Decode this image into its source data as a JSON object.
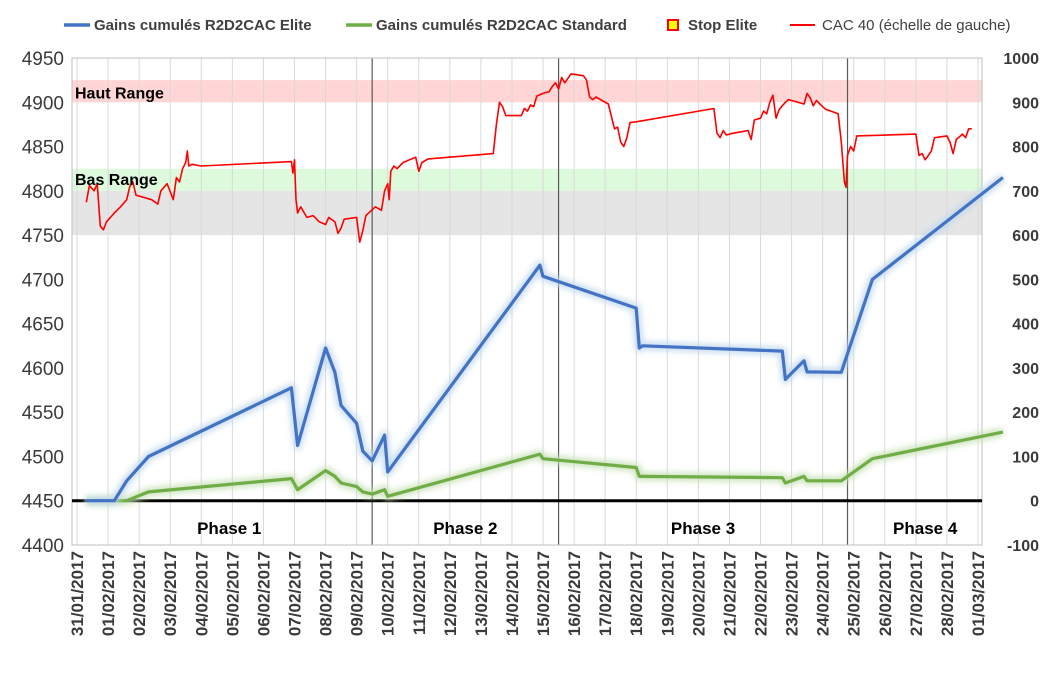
{
  "chart_data": {
    "type": "line",
    "title": "",
    "xlabel": "",
    "x_range": [
      "31/01/2017",
      "01/03/2017"
    ],
    "x_tick_labels": [
      "31/01/2017",
      "01/02/2017",
      "02/02/2017",
      "03/02/2017",
      "04/02/2017",
      "05/02/2017",
      "06/02/2017",
      "07/02/2017",
      "08/02/2017",
      "09/02/2017",
      "10/02/2017",
      "11/02/2017",
      "12/02/2017",
      "13/02/2017",
      "14/02/2017",
      "15/02/2017",
      "16/02/2017",
      "17/02/2017",
      "18/02/2017",
      "19/02/2017",
      "20/02/2017",
      "21/02/2017",
      "22/02/2017",
      "23/02/2017",
      "24/02/2017",
      "25/02/2017",
      "26/02/2017",
      "27/02/2017",
      "28/02/2017",
      "01/03/2017"
    ],
    "y_left": {
      "range": [
        4400,
        4950
      ],
      "ticks": [
        4400,
        4450,
        4500,
        4550,
        4600,
        4650,
        4700,
        4750,
        4800,
        4850,
        4900,
        4950
      ]
    },
    "y_right": {
      "range": [
        -100,
        1000
      ],
      "ticks": [
        -100,
        0,
        100,
        200,
        300,
        400,
        500,
        600,
        700,
        800,
        900,
        1000
      ]
    },
    "grid": "vertical",
    "legend_position": "top",
    "legend": [
      {
        "label": "Gains cumulés R2D2CAC Elite",
        "color": "#4472c4",
        "kind": "line"
      },
      {
        "label": "Gains cumulés R2D2CAC Standard",
        "color": "#70ad47",
        "kind": "line"
      },
      {
        "label": "Stop Elite",
        "color": "#ff0000",
        "kind": "marker"
      },
      {
        "label": "CAC 40 (échelle de gauche)",
        "color": "#ff0000",
        "kind": "line"
      }
    ],
    "bands": [
      {
        "label": "Haut Range",
        "y": [
          4900,
          4925
        ],
        "color": "#ffd5d5",
        "axis": "left"
      },
      {
        "label": "Bas Range",
        "y": [
          4800,
          4825
        ],
        "color": "#ddfadd",
        "axis": "left"
      },
      {
        "label": "",
        "y": [
          4750,
          4800
        ],
        "color": "#e5e5e5",
        "axis": "left"
      }
    ],
    "phases": [
      {
        "label": "Phase 1",
        "x": [
          0.3,
          9.5
        ]
      },
      {
        "label": "Phase 2",
        "x": [
          9.5,
          15.5
        ]
      },
      {
        "label": "Phase 3",
        "x": [
          15.5,
          24.8
        ]
      },
      {
        "label": "Phase 4",
        "x": [
          24.8,
          29.8
        ]
      }
    ],
    "series": [
      {
        "name": "CAC 40 (échelle de gauche)",
        "axis": "left",
        "color": "#ff0000",
        "points": [
          [
            0.3,
            4787
          ],
          [
            0.4,
            4806
          ],
          [
            0.55,
            4800
          ],
          [
            0.65,
            4808
          ],
          [
            0.75,
            4760
          ],
          [
            0.85,
            4756
          ],
          [
            0.95,
            4765
          ],
          [
            1.2,
            4775
          ],
          [
            1.4,
            4782
          ],
          [
            1.6,
            4790
          ],
          [
            1.7,
            4805
          ],
          [
            1.8,
            4810
          ],
          [
            1.9,
            4795
          ],
          [
            2.2,
            4792
          ],
          [
            2.4,
            4790
          ],
          [
            2.6,
            4785
          ],
          [
            2.7,
            4800
          ],
          [
            2.9,
            4808
          ],
          [
            3.1,
            4790
          ],
          [
            3.2,
            4815
          ],
          [
            3.3,
            4810
          ],
          [
            3.4,
            4825
          ],
          [
            3.5,
            4832
          ],
          [
            3.55,
            4845
          ],
          [
            3.6,
            4828
          ],
          [
            3.7,
            4830
          ],
          [
            4.0,
            4828
          ],
          [
            6.9,
            4833
          ],
          [
            6.95,
            4820
          ],
          [
            7.0,
            4835
          ],
          [
            7.05,
            4790
          ],
          [
            7.1,
            4775
          ],
          [
            7.2,
            4782
          ],
          [
            7.3,
            4776
          ],
          [
            7.4,
            4770
          ],
          [
            7.6,
            4772
          ],
          [
            7.8,
            4765
          ],
          [
            8.0,
            4762
          ],
          [
            8.1,
            4770
          ],
          [
            8.3,
            4765
          ],
          [
            8.4,
            4752
          ],
          [
            8.5,
            4758
          ],
          [
            8.6,
            4768
          ],
          [
            9.0,
            4770
          ],
          [
            9.1,
            4742
          ],
          [
            9.2,
            4755
          ],
          [
            9.3,
            4772
          ],
          [
            9.6,
            4782
          ],
          [
            9.8,
            4778
          ],
          [
            9.9,
            4800
          ],
          [
            10.0,
            4808
          ],
          [
            10.05,
            4790
          ],
          [
            10.1,
            4822
          ],
          [
            10.2,
            4828
          ],
          [
            10.3,
            4825
          ],
          [
            10.5,
            4832
          ],
          [
            10.7,
            4835
          ],
          [
            10.9,
            4838
          ],
          [
            11.0,
            4822
          ],
          [
            11.1,
            4832
          ],
          [
            11.3,
            4836
          ],
          [
            13.4,
            4842
          ],
          [
            13.5,
            4875
          ],
          [
            13.6,
            4900
          ],
          [
            13.7,
            4895
          ],
          [
            13.8,
            4885
          ],
          [
            14.3,
            4885
          ],
          [
            14.4,
            4893
          ],
          [
            14.5,
            4890
          ],
          [
            14.6,
            4897
          ],
          [
            14.7,
            4895
          ],
          [
            14.8,
            4907
          ],
          [
            15.0,
            4910
          ],
          [
            15.2,
            4912
          ],
          [
            15.3,
            4918
          ],
          [
            15.4,
            4922
          ],
          [
            15.5,
            4915
          ],
          [
            15.6,
            4928
          ],
          [
            15.7,
            4922
          ],
          [
            15.9,
            4932
          ],
          [
            16.3,
            4930
          ],
          [
            16.4,
            4925
          ],
          [
            16.5,
            4906
          ],
          [
            16.6,
            4903
          ],
          [
            16.7,
            4906
          ],
          [
            16.9,
            4902
          ],
          [
            17.1,
            4898
          ],
          [
            17.3,
            4870
          ],
          [
            17.4,
            4872
          ],
          [
            17.5,
            4855
          ],
          [
            17.6,
            4850
          ],
          [
            17.7,
            4860
          ],
          [
            17.8,
            4877
          ],
          [
            18.0,
            4878
          ],
          [
            20.5,
            4893
          ],
          [
            20.6,
            4865
          ],
          [
            20.7,
            4860
          ],
          [
            20.8,
            4868
          ],
          [
            20.9,
            4863
          ],
          [
            21.1,
            4865
          ],
          [
            21.6,
            4868
          ],
          [
            21.7,
            4858
          ],
          [
            21.8,
            4880
          ],
          [
            22.0,
            4882
          ],
          [
            22.1,
            4890
          ],
          [
            22.2,
            4887
          ],
          [
            22.3,
            4900
          ],
          [
            22.4,
            4908
          ],
          [
            22.5,
            4882
          ],
          [
            22.6,
            4892
          ],
          [
            22.8,
            4900
          ],
          [
            22.9,
            4903
          ],
          [
            23.4,
            4898
          ],
          [
            23.5,
            4910
          ],
          [
            23.6,
            4905
          ],
          [
            23.7,
            4896
          ],
          [
            23.8,
            4902
          ],
          [
            24.0,
            4895
          ],
          [
            24.1,
            4892
          ],
          [
            24.5,
            4887
          ],
          [
            24.6,
            4855
          ],
          [
            24.7,
            4810
          ],
          [
            24.75,
            4804
          ],
          [
            24.8,
            4840
          ],
          [
            24.9,
            4850
          ],
          [
            25.0,
            4845
          ],
          [
            25.1,
            4862
          ],
          [
            27.0,
            4864
          ],
          [
            27.1,
            4840
          ],
          [
            27.2,
            4842
          ],
          [
            27.3,
            4835
          ],
          [
            27.5,
            4845
          ],
          [
            27.6,
            4860
          ],
          [
            28.0,
            4862
          ],
          [
            28.1,
            4855
          ],
          [
            28.2,
            4842
          ],
          [
            28.3,
            4858
          ],
          [
            28.5,
            4864
          ],
          [
            28.6,
            4860
          ],
          [
            28.7,
            4870
          ],
          [
            28.8,
            4870
          ]
        ]
      },
      {
        "name": "Gains cumulés R2D2CAC Elite",
        "axis": "right",
        "color": "#4472c4",
        "points": [
          [
            0.3,
            0
          ],
          [
            1.2,
            0
          ],
          [
            1.6,
            45
          ],
          [
            2.3,
            100
          ],
          [
            6.9,
            255
          ],
          [
            7.1,
            125
          ],
          [
            8.0,
            345
          ],
          [
            8.3,
            290
          ],
          [
            8.5,
            215
          ],
          [
            9.0,
            175
          ],
          [
            9.2,
            112
          ],
          [
            9.5,
            90
          ],
          [
            9.9,
            148
          ],
          [
            10.0,
            65
          ],
          [
            14.9,
            532
          ],
          [
            15.0,
            507
          ],
          [
            18.0,
            435
          ],
          [
            18.1,
            345
          ],
          [
            18.2,
            350
          ],
          [
            22.7,
            338
          ],
          [
            22.8,
            274
          ],
          [
            23.4,
            316
          ],
          [
            23.5,
            291
          ],
          [
            24.6,
            290
          ],
          [
            25.6,
            500
          ],
          [
            29.8,
            730
          ]
        ]
      },
      {
        "name": "Gains cumulés R2D2CAC Standard",
        "axis": "right",
        "color": "#70ad47",
        "points": [
          [
            0.3,
            0
          ],
          [
            1.6,
            0
          ],
          [
            2.3,
            20
          ],
          [
            6.9,
            50
          ],
          [
            7.1,
            25
          ],
          [
            8.0,
            68
          ],
          [
            8.3,
            55
          ],
          [
            8.5,
            40
          ],
          [
            9.0,
            32
          ],
          [
            9.2,
            20
          ],
          [
            9.5,
            15
          ],
          [
            9.9,
            25
          ],
          [
            10.0,
            10
          ],
          [
            14.9,
            105
          ],
          [
            15.0,
            95
          ],
          [
            18.0,
            75
          ],
          [
            18.1,
            55
          ],
          [
            18.2,
            55
          ],
          [
            22.7,
            52
          ],
          [
            22.8,
            40
          ],
          [
            23.4,
            55
          ],
          [
            23.5,
            45
          ],
          [
            24.6,
            45
          ],
          [
            25.6,
            95
          ],
          [
            29.8,
            155
          ]
        ]
      }
    ],
    "stop_elite_markers": []
  }
}
